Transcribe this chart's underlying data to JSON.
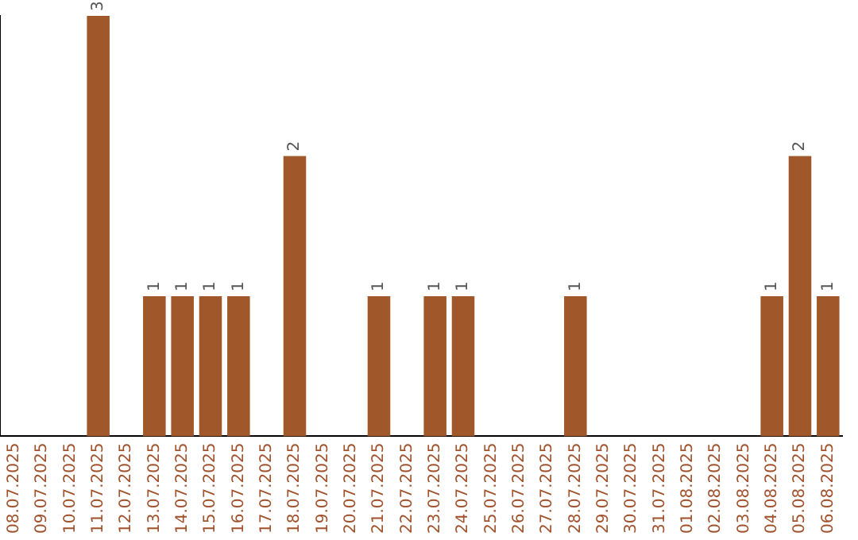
{
  "chart_data": {
    "type": "bar",
    "categories": [
      "08.07.2025",
      "09.07.2025",
      "10.07.2025",
      "11.07.2025",
      "12.07.2025",
      "13.07.2025",
      "14.07.2025",
      "15.07.2025",
      "16.07.2025",
      "17.07.2025",
      "18.07.2025",
      "19.07.2025",
      "20.07.2025",
      "21.07.2025",
      "22.07.2025",
      "23.07.2025",
      "24.07.2025",
      "25.07.2025",
      "26.07.2025",
      "27.07.2025",
      "28.07.2025",
      "29.07.2025",
      "30.07.2025",
      "31.07.2025",
      "01.08.2025",
      "02.08.2025",
      "03.08.2025",
      "04.08.2025",
      "05.08.2025",
      "06.08.2025"
    ],
    "values": [
      0,
      0,
      0,
      3,
      0,
      1,
      1,
      1,
      1,
      0,
      2,
      0,
      0,
      1,
      0,
      1,
      1,
      0,
      0,
      0,
      1,
      0,
      0,
      0,
      0,
      0,
      0,
      1,
      2,
      1
    ],
    "value_labels": [
      null,
      null,
      null,
      "3",
      null,
      "1",
      "1",
      "1",
      "1",
      null,
      "2",
      null,
      null,
      "1",
      null,
      "1",
      "1",
      null,
      null,
      null,
      "1",
      null,
      null,
      null,
      null,
      null,
      null,
      "1",
      "2",
      "1"
    ],
    "color": "#a0582a",
    "grid": false,
    "legend": false,
    "tick_labels": "x"
  }
}
